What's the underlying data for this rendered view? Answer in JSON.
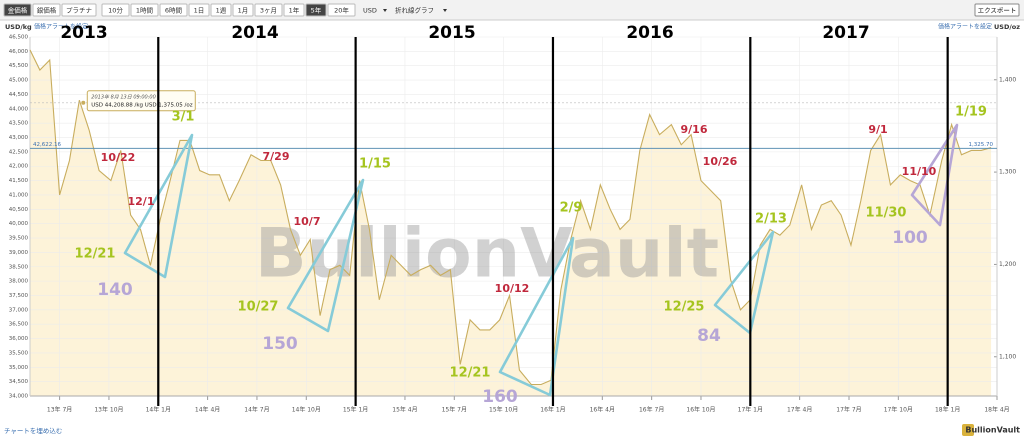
{
  "toolbar": {
    "metals": [
      "金価格",
      "銀価格",
      "プラチナ"
    ],
    "periods": [
      "10分",
      "1時間",
      "6時間",
      "1日",
      "1週",
      "1月",
      "3ヶ月",
      "1年",
      "5年",
      "20年"
    ],
    "currency": "USD",
    "chart_style": "折れ線グラフ",
    "export": "エクスポート"
  },
  "footer": {
    "embed": "チャートを埋め込む",
    "brand": "BullionVault"
  },
  "chart_data": {
    "type": "line",
    "y_unit": "USD/kg",
    "y2_unit": "USD/oz",
    "alert_left": "価格アラートを設定",
    "alert_right": "価格アラートを設定",
    "watermark": "BullionVault",
    "color": "#c8ad5e",
    "area_color": "#fdf3d9",
    "grid": true,
    "xlim": [
      2013.35,
      2018.25
    ],
    "xticks": [
      {
        "value": 2013.5,
        "label": "13年 7月"
      },
      {
        "value": 2013.75,
        "label": "13年 10月"
      },
      {
        "value": 2014,
        "label": "14年 1月"
      },
      {
        "value": 2014.25,
        "label": "14年 4月"
      },
      {
        "value": 2014.5,
        "label": "14年 7月"
      },
      {
        "value": 2014.75,
        "label": "14年 10月"
      },
      {
        "value": 2015,
        "label": "15年 1月"
      },
      {
        "value": 2015.25,
        "label": "15年 4月"
      },
      {
        "value": 2015.5,
        "label": "15年 7月"
      },
      {
        "value": 2015.75,
        "label": "15年 10月"
      },
      {
        "value": 2016,
        "label": "16年 1月"
      },
      {
        "value": 2016.25,
        "label": "16年 4月"
      },
      {
        "value": 2016.5,
        "label": "16年 7月"
      },
      {
        "value": 2016.75,
        "label": "16年 10月"
      },
      {
        "value": 2017,
        "label": "17年 1月"
      },
      {
        "value": 2017.25,
        "label": "17年 4月"
      },
      {
        "value": 2017.5,
        "label": "17年 7月"
      },
      {
        "value": 2017.75,
        "label": "17年 10月"
      },
      {
        "value": 2018,
        "label": "18年 1月"
      },
      {
        "value": 2018.25,
        "label": "18年 4月"
      }
    ],
    "ylim": [
      34000,
      46500
    ],
    "yticks": [
      {
        "value": 34000,
        "label": "34,000"
      },
      {
        "value": 34500,
        "label": "34,500"
      },
      {
        "value": 35000,
        "label": "35,000"
      },
      {
        "value": 35500,
        "label": "35,500"
      },
      {
        "value": 36000,
        "label": "36,000"
      },
      {
        "value": 36500,
        "label": "36,500"
      },
      {
        "value": 37000,
        "label": "37,000"
      },
      {
        "value": 37500,
        "label": "37,500"
      },
      {
        "value": 38000,
        "label": "38,000"
      },
      {
        "value": 38500,
        "label": "38,500"
      },
      {
        "value": 39000,
        "label": "39,000"
      },
      {
        "value": 39500,
        "label": "39,500"
      },
      {
        "value": 40000,
        "label": "40,000"
      },
      {
        "value": 40500,
        "label": "40,500"
      },
      {
        "value": 41000,
        "label": "41,000"
      },
      {
        "value": 41500,
        "label": "41,500"
      },
      {
        "value": 42000,
        "label": "42,000"
      },
      {
        "value": 42500,
        "label": "42,500"
      },
      {
        "value": 43000,
        "label": "43,000"
      },
      {
        "value": 43500,
        "label": "43,500"
      },
      {
        "value": 44000,
        "label": "44,000"
      },
      {
        "value": 44500,
        "label": "44,500"
      },
      {
        "value": 45000,
        "label": "45,000"
      },
      {
        "value": 45500,
        "label": "45,500"
      },
      {
        "value": 46000,
        "label": "46,000"
      },
      {
        "value": 46500,
        "label": "46,500"
      }
    ],
    "y2lim": [
      1057.5,
      1446.3
    ],
    "y2ticks": [
      {
        "value": 1100,
        "label": "1,100"
      },
      {
        "value": 1200,
        "label": "1,200"
      },
      {
        "value": 1300,
        "label": "1,300"
      },
      {
        "value": 1400,
        "label": "1,400"
      }
    ],
    "x": [
      2013.35,
      2013.4,
      2013.45,
      2013.5,
      2013.55,
      2013.6,
      2013.65,
      2013.7,
      2013.76,
      2013.81,
      2013.86,
      2013.91,
      2013.96,
      2014.01,
      2014.06,
      2014.11,
      2014.16,
      2014.21,
      2014.26,
      2014.31,
      2014.36,
      2014.41,
      2014.47,
      2014.52,
      2014.57,
      2014.62,
      2014.67,
      2014.72,
      2014.77,
      2014.82,
      2014.87,
      2014.92,
      2014.97,
      2015.02,
      2015.07,
      2015.12,
      2015.18,
      2015.23,
      2015.28,
      2015.33,
      2015.38,
      2015.43,
      2015.48,
      2015.53,
      2015.58,
      2015.63,
      2015.68,
      2015.73,
      2015.78,
      2015.83,
      2015.89,
      2015.94,
      2015.99,
      2016.04,
      2016.09,
      2016.14,
      2016.19,
      2016.24,
      2016.29,
      2016.34,
      2016.39,
      2016.44,
      2016.49,
      2016.54,
      2016.6,
      2016.65,
      2016.7,
      2016.75,
      2016.8,
      2016.85,
      2016.9,
      2016.95,
      2017.0,
      2017.05,
      2017.1,
      2017.15,
      2017.2,
      2017.26,
      2017.31,
      2017.36,
      2017.41,
      2017.46,
      2017.51,
      2017.56,
      2017.61,
      2017.66,
      2017.71,
      2017.76,
      2017.81,
      2017.86,
      2017.91,
      2017.97,
      2018.02,
      2018.07,
      2018.12,
      2018.17,
      2018.22
    ],
    "values": [
      46050,
      45350,
      45700,
      41000,
      42200,
      44300,
      43250,
      41850,
      41500,
      42550,
      40300,
      39800,
      38550,
      40150,
      41500,
      42900,
      42900,
      41850,
      41700,
      41700,
      40800,
      41500,
      42400,
      42200,
      42200,
      41350,
      39800,
      38900,
      39450,
      36800,
      38400,
      38550,
      38200,
      41500,
      39800,
      37350,
      38900,
      38550,
      38200,
      38400,
      38550,
      38200,
      38400,
      35100,
      36650,
      36300,
      36300,
      36650,
      37500,
      34900,
      34400,
      34400,
      34550,
      37700,
      39450,
      40800,
      39800,
      41350,
      40500,
      39800,
      40150,
      42550,
      43800,
      43100,
      43450,
      42750,
      43100,
      41500,
      41150,
      40800,
      38050,
      37000,
      37350,
      39250,
      39800,
      39600,
      39950,
      41350,
      39800,
      40650,
      40800,
      40300,
      39250,
      40800,
      42550,
      43100,
      41350,
      41700,
      41500,
      41350,
      40300,
      42200,
      43450,
      42400,
      42550,
      42550,
      42650
    ],
    "current_price": {
      "kg": {
        "value": 42622.16,
        "label": "42,622.16"
      },
      "oz": {
        "value": 1325.7,
        "label": "1,325.70"
      }
    },
    "tooltip": {
      "x": 2013.62,
      "value": 44208.88,
      "date": "2013年 8月 13日 09:00:00",
      "detail": "USD 44,208.88 /kg USD 1,375.05 /oz"
    },
    "year_lines": [
      2014,
      2015,
      2016,
      2017,
      2018
    ],
    "years": [
      "2013",
      "2014",
      "2015",
      "2016",
      "2017"
    ],
    "peaks": {
      "color": "#c0283c",
      "labels": [
        "10/22",
        "12/1",
        "7/29",
        "10/7",
        "10/12",
        "9/16",
        "10/26",
        "9/1",
        "11/10"
      ]
    },
    "troughs": {
      "color": "#a5c41f",
      "labels": [
        "3/1",
        "12/21",
        "1/15",
        "10/27",
        "12/21",
        "2/9",
        "12/25",
        "2/13",
        "11/30",
        "1/19"
      ]
    },
    "gaps": {
      "color": "#b6a6d6",
      "labels": [
        140,
        150,
        160,
        84,
        100
      ]
    }
  }
}
